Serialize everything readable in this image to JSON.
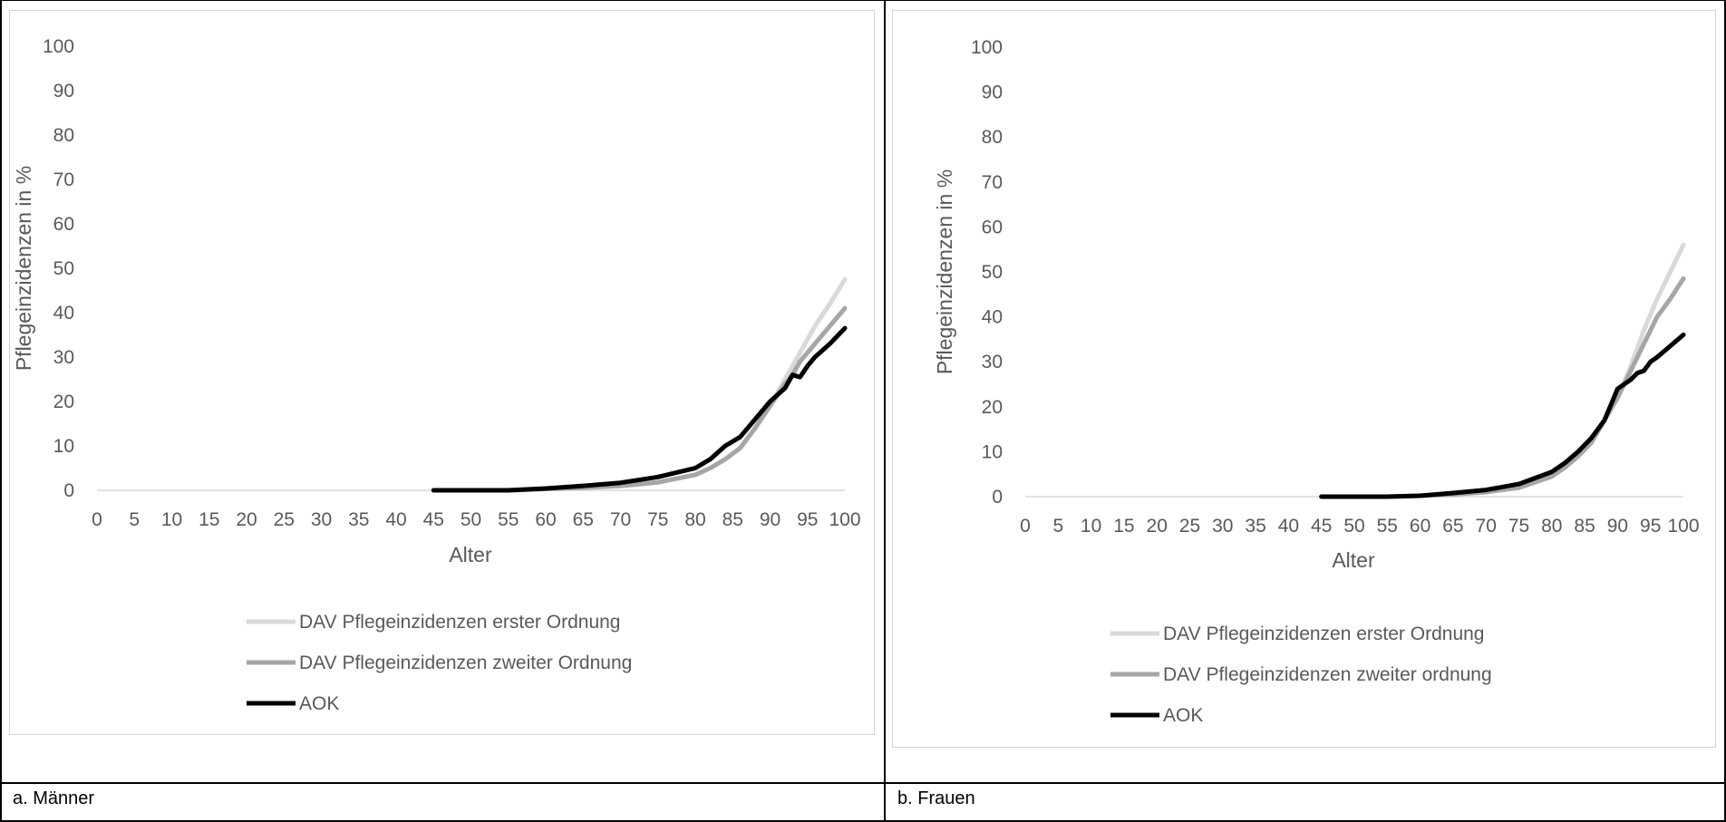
{
  "panels": [
    {
      "caption": "a. Männer"
    },
    {
      "caption": "b. Frauen"
    }
  ],
  "colors": {
    "series": [
      "#d9d9d9",
      "#a6a6a6",
      "#000000"
    ],
    "axis": "#d9d9d9",
    "text": "#595959"
  },
  "chart_data": [
    {
      "type": "line",
      "title": "",
      "xlabel": "Alter",
      "ylabel": "Pflegeinzidenzen in %",
      "xlim": [
        0,
        100
      ],
      "ylim": [
        0,
        100
      ],
      "xticks": [
        0,
        5,
        10,
        15,
        20,
        25,
        30,
        35,
        40,
        45,
        50,
        55,
        60,
        65,
        70,
        75,
        80,
        85,
        90,
        95,
        100
      ],
      "yticks": [
        0,
        10,
        20,
        30,
        40,
        50,
        60,
        70,
        80,
        90,
        100
      ],
      "grid": false,
      "legend_position": "bottom",
      "x": [
        45,
        50,
        55,
        60,
        65,
        70,
        75,
        80,
        82,
        84,
        86,
        88,
        90,
        92,
        93,
        94,
        95,
        96,
        98,
        100
      ],
      "series": [
        {
          "name": "DAV Pflegeinzidenzen erster Ordnung",
          "values": [
            0,
            0,
            0,
            0.3,
            0.6,
            1.0,
            1.8,
            3.5,
            5,
            7,
            9.5,
            14,
            19,
            25,
            28,
            31,
            34,
            37,
            42,
            47.5
          ]
        },
        {
          "name": "DAV Pflegeinzidenzen zweiter Ordnung",
          "values": [
            0,
            0,
            0,
            0.3,
            0.6,
            1.0,
            1.8,
            3.5,
            5,
            7,
            9.5,
            14,
            19,
            24,
            26,
            29,
            31,
            33,
            37,
            41
          ]
        },
        {
          "name": "AOK",
          "values": [
            0,
            0,
            0,
            0.4,
            1.0,
            1.7,
            3.0,
            5.0,
            7,
            10,
            12,
            16,
            20,
            23,
            26,
            25.5,
            28,
            30,
            33,
            36.5
          ]
        }
      ]
    },
    {
      "type": "line",
      "title": "",
      "xlabel": "Alter",
      "ylabel": "Pflegeinzidenzen in %",
      "xlim": [
        0,
        100
      ],
      "ylim": [
        0,
        100
      ],
      "xticks": [
        0,
        5,
        10,
        15,
        20,
        25,
        30,
        35,
        40,
        45,
        50,
        55,
        60,
        65,
        70,
        75,
        80,
        85,
        90,
        95,
        100
      ],
      "yticks": [
        0,
        10,
        20,
        30,
        40,
        50,
        60,
        70,
        80,
        90,
        100
      ],
      "grid": false,
      "legend_position": "bottom",
      "x": [
        45,
        50,
        55,
        60,
        65,
        70,
        75,
        80,
        82,
        84,
        86,
        88,
        90,
        92,
        93,
        94,
        95,
        96,
        98,
        100
      ],
      "series": [
        {
          "name": "DAV Pflegeinzidenzen erster Ordnung",
          "values": [
            0,
            0,
            0,
            0.2,
            0.5,
            1.0,
            2.0,
            4.5,
            6.5,
            9,
            12,
            17,
            22,
            29,
            33,
            37,
            40.5,
            44,
            50,
            56
          ]
        },
        {
          "name": "DAV Pflegeinzidenzen zweiter ordnung",
          "values": [
            0,
            0,
            0,
            0.2,
            0.5,
            1.0,
            2.0,
            4.5,
            6.5,
            9,
            12,
            17,
            22,
            28,
            31,
            34,
            37,
            40,
            44,
            48.5
          ]
        },
        {
          "name": "AOK",
          "values": [
            0,
            0,
            0,
            0.2,
            0.8,
            1.5,
            2.8,
            5.5,
            7.5,
            10,
            13,
            17,
            24,
            26,
            27.5,
            28,
            30,
            31,
            33.5,
            36
          ]
        }
      ]
    }
  ]
}
